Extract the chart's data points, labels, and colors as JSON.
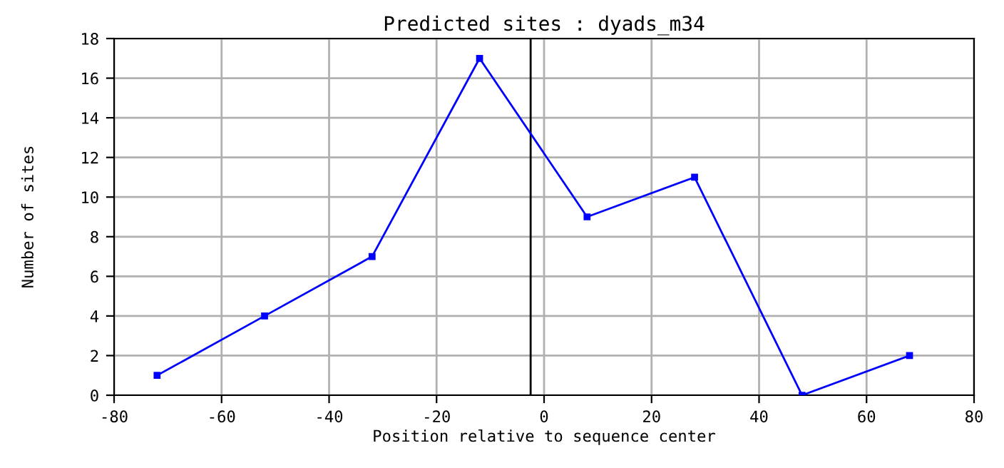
{
  "chart_data": {
    "type": "line",
    "title": "Predicted sites : dyads_m34",
    "xlabel": "Position relative to sequence center",
    "ylabel": "Number of sites",
    "x": [
      -72,
      -52,
      -32,
      -12,
      8,
      28,
      48,
      68
    ],
    "series": [
      {
        "color": "#0000ff",
        "values": [
          1,
          4,
          7,
          17,
          9,
          11,
          0,
          2
        ]
      }
    ],
    "xlim": [
      -80,
      80
    ],
    "xticks": [
      -80,
      -60,
      -40,
      -20,
      0,
      20,
      40,
      60,
      80
    ],
    "ylim": [
      0,
      18
    ],
    "yticks": [
      0,
      2,
      4,
      6,
      8,
      10,
      12,
      14,
      16,
      18
    ],
    "grid": true,
    "marker": "square",
    "line_style": "solid",
    "ref_lines": [
      {
        "axis": "x",
        "value": -2.5,
        "color": "#000000"
      }
    ]
  }
}
